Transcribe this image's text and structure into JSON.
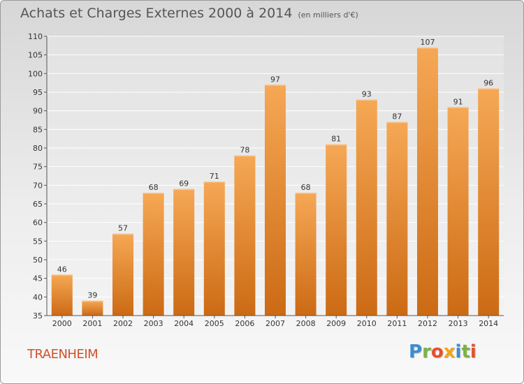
{
  "header": {
    "title": "Achats et Charges Externes 2000 à 2014",
    "subtitle": "(en milliers d'€)"
  },
  "footer": {
    "commune": "TRAENHEIM",
    "logo_letters": [
      {
        "char": "P",
        "color": "#3a8ed0"
      },
      {
        "char": "r",
        "color": "#7bb342"
      },
      {
        "char": "o",
        "color": "#e8502b"
      },
      {
        "char": "x",
        "color": "#f2a516"
      },
      {
        "char": "i",
        "color": "#3a8ed0"
      },
      {
        "char": "t",
        "color": "#7bb342"
      },
      {
        "char": "i",
        "color": "#e8502b"
      }
    ]
  },
  "chart_data": {
    "type": "bar",
    "title": "Achats et Charges Externes 2000 à 2014",
    "subtitle": "(en milliers d'€)",
    "categories": [
      "2000",
      "2001",
      "2002",
      "2003",
      "2004",
      "2005",
      "2006",
      "2007",
      "2008",
      "2009",
      "2010",
      "2011",
      "2012",
      "2013",
      "2014"
    ],
    "values": [
      46,
      39,
      57,
      68,
      69,
      71,
      78,
      97,
      68,
      81,
      93,
      87,
      107,
      91,
      96
    ],
    "ylim": [
      35,
      110
    ],
    "yticks": [
      35,
      40,
      45,
      50,
      55,
      60,
      65,
      70,
      75,
      80,
      85,
      90,
      95,
      100,
      105,
      110
    ],
    "grid": true,
    "data_labels": true,
    "bar_color_top": "#f6a855",
    "bar_color_bottom": "#cc6a14"
  }
}
